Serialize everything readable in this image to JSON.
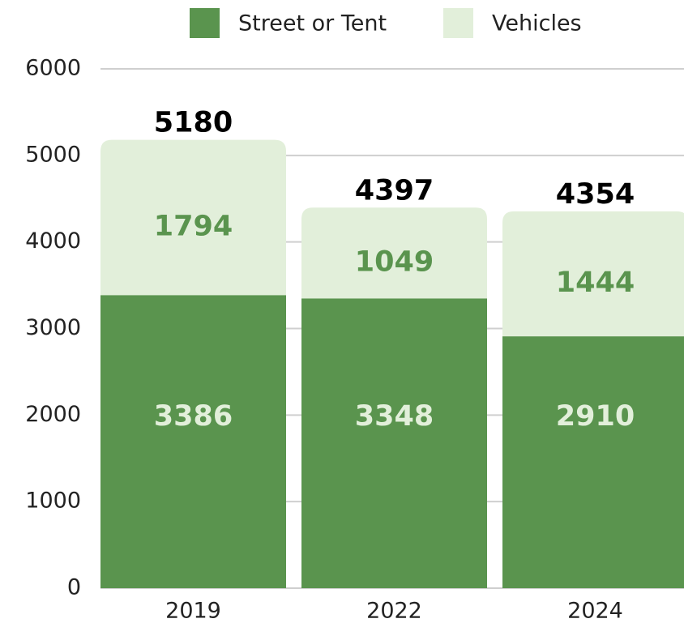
{
  "chart_data": {
    "type": "stacked_bar",
    "categories": [
      "2019",
      "2022",
      "2024"
    ],
    "series": [
      {
        "name": "Street or Tent",
        "color": "#5a944e",
        "values": [
          3386,
          3348,
          2910
        ]
      },
      {
        "name": "Vehicles",
        "color": "#e2efda",
        "values": [
          1794,
          1049,
          1444
        ]
      }
    ],
    "totals": [
      5180,
      4397,
      4354
    ],
    "ylim": [
      0,
      6000
    ],
    "yticks": [
      0,
      1000,
      2000,
      3000,
      4000,
      5000,
      6000
    ],
    "grid": true
  }
}
